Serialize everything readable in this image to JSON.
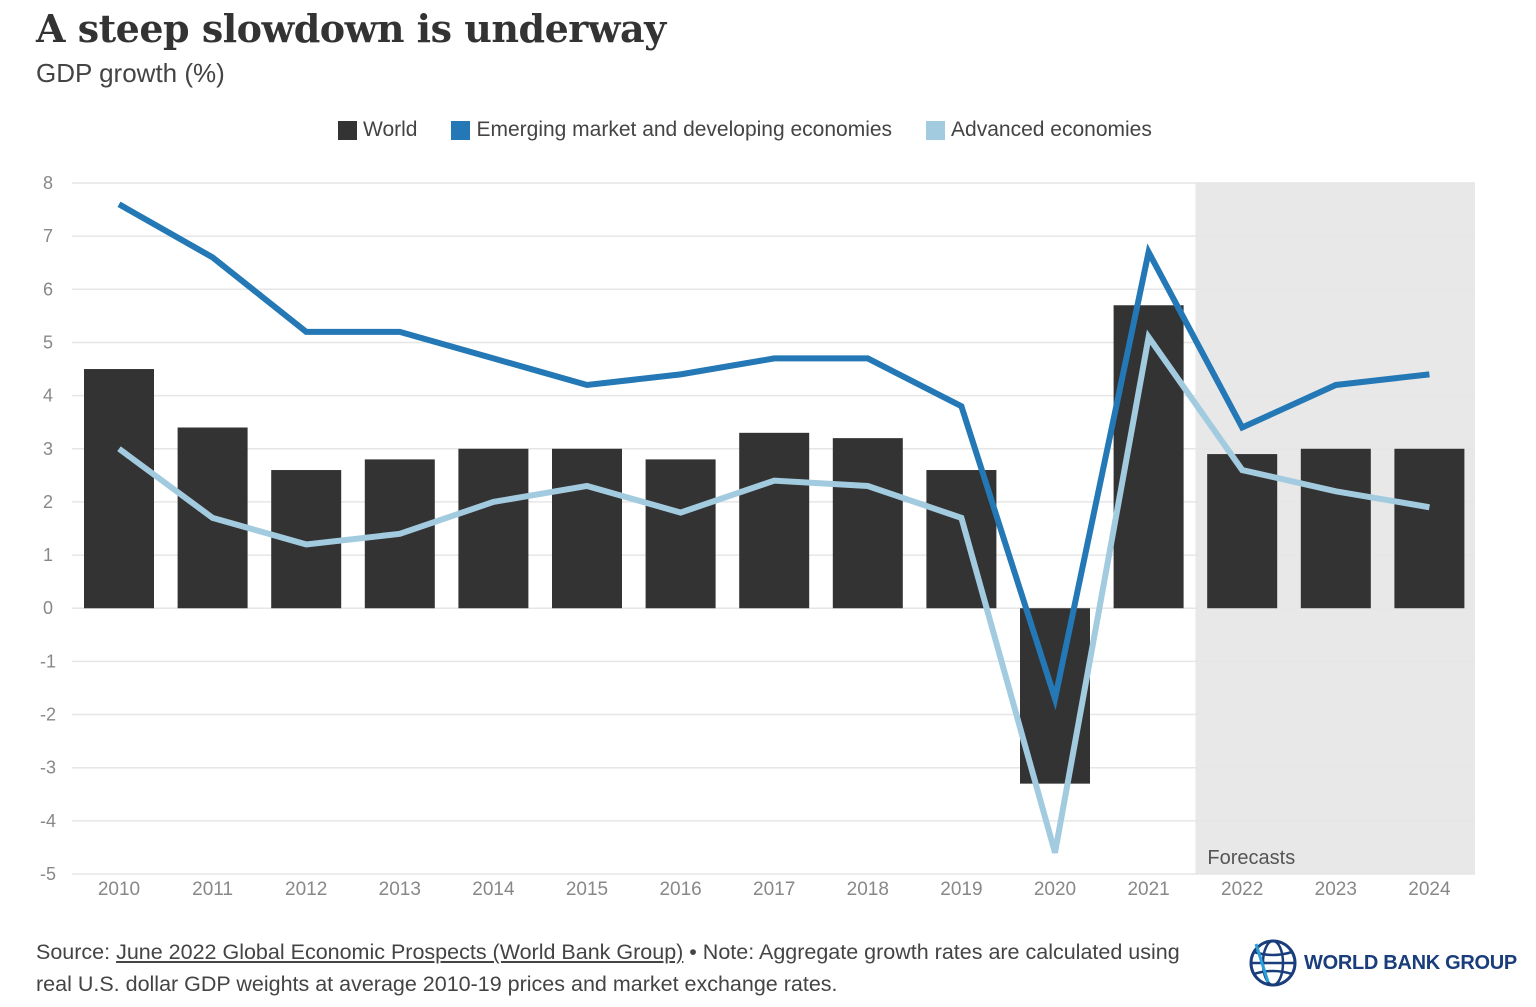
{
  "header": {
    "title": "A steep slowdown is underway",
    "subtitle": "GDP growth (%)"
  },
  "colors": {
    "world": "#333333",
    "emde": "#2378b5",
    "advanced": "#a2cbe0",
    "forecast_bg": "#e8e8e8",
    "grid": "#e6e6e6"
  },
  "chart_data": {
    "type": "bar",
    "title": "A steep slowdown is underway",
    "ylabel": "GDP growth (%)",
    "ylim": [
      -5,
      8
    ],
    "yticks": [
      8,
      7,
      6,
      5,
      4,
      3,
      2,
      1,
      0,
      -1,
      -2,
      -3,
      -4,
      -5
    ],
    "grid": true,
    "legend_position": "top-center",
    "categories": [
      "2010",
      "2011",
      "2012",
      "2013",
      "2014",
      "2015",
      "2016",
      "2017",
      "2018",
      "2019",
      "2020",
      "2021",
      "2022",
      "2023",
      "2024"
    ],
    "series": [
      {
        "name": "World",
        "type": "bar",
        "values": [
          4.5,
          3.4,
          2.6,
          2.8,
          3.0,
          3.0,
          2.8,
          3.3,
          3.2,
          2.6,
          -3.3,
          5.7,
          2.9,
          3.0,
          3.0
        ]
      },
      {
        "name": "Emerging market and developing economies",
        "type": "line",
        "values": [
          7.6,
          6.6,
          5.2,
          5.2,
          4.7,
          4.2,
          4.4,
          4.7,
          4.7,
          3.8,
          -1.7,
          6.7,
          3.4,
          4.2,
          4.4
        ]
      },
      {
        "name": "Advanced economies",
        "type": "line",
        "values": [
          3.0,
          1.7,
          1.2,
          1.4,
          2.0,
          2.3,
          1.8,
          2.4,
          2.3,
          1.7,
          -4.6,
          5.1,
          2.6,
          2.2,
          1.9
        ]
      }
    ],
    "annotations": [
      {
        "text": "Forecasts",
        "applies_to": [
          "2022",
          "2023",
          "2024"
        ]
      }
    ]
  },
  "footer": {
    "source_prefix": "Source: ",
    "source_link": "June 2022 Global Economic Prospects (World Bank Group)",
    "note": " • Note: Aggregate growth rates are calculated using real U.S. dollar GDP weights at average 2010-19 prices and market exchange rates."
  },
  "logo": {
    "text": "WORLD BANK GROUP"
  }
}
